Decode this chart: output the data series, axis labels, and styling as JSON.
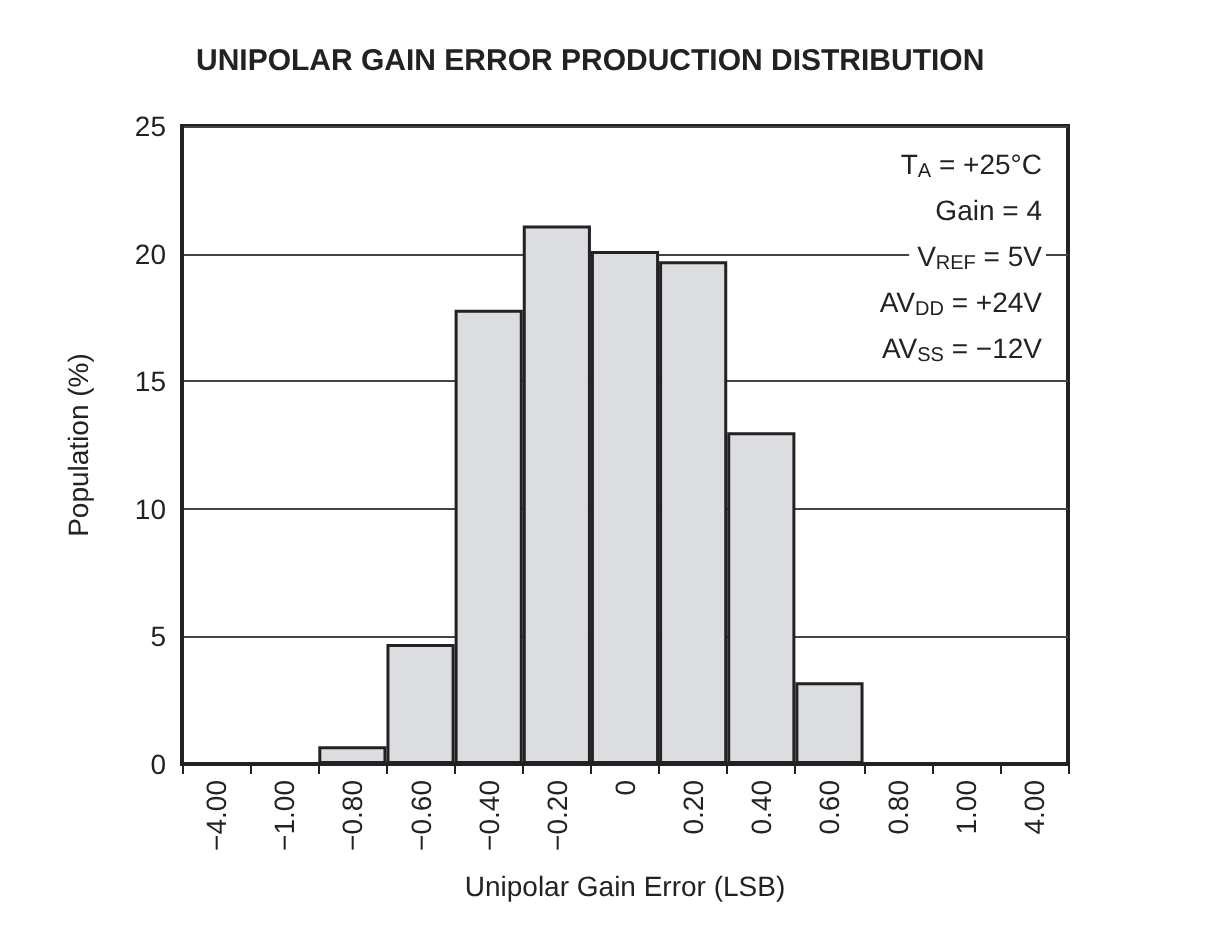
{
  "chart_data": {
    "type": "bar",
    "title": "UNIPOLAR GAIN ERROR PRODUCTION DISTRIBUTION",
    "xlabel": "Unipolar Gain Error (LSB)",
    "ylabel": "Population (%)",
    "categories": [
      "−4.00",
      "−1.00",
      "−0.80",
      "−0.60",
      "−0.40",
      "−0.20",
      "0",
      "0.20",
      "0.40",
      "0.60",
      "0.80",
      "1.00",
      "4.00"
    ],
    "values": [
      0,
      0,
      0.7,
      4.7,
      17.8,
      21.1,
      20.1,
      19.7,
      13.0,
      3.2,
      0,
      0,
      0
    ],
    "color": "#dcdde0",
    "ylim": [
      0,
      25
    ],
    "yticks": [
      0,
      5,
      10,
      15,
      20,
      25
    ],
    "grid": "y",
    "annotations": [
      "T$_{A}$ = +25°C",
      "Gain = 4",
      "V$_{REF}$ = 5V",
      "AV$_{DD}$ = +24V",
      "AV$_{SS}$ = −12V"
    ]
  }
}
